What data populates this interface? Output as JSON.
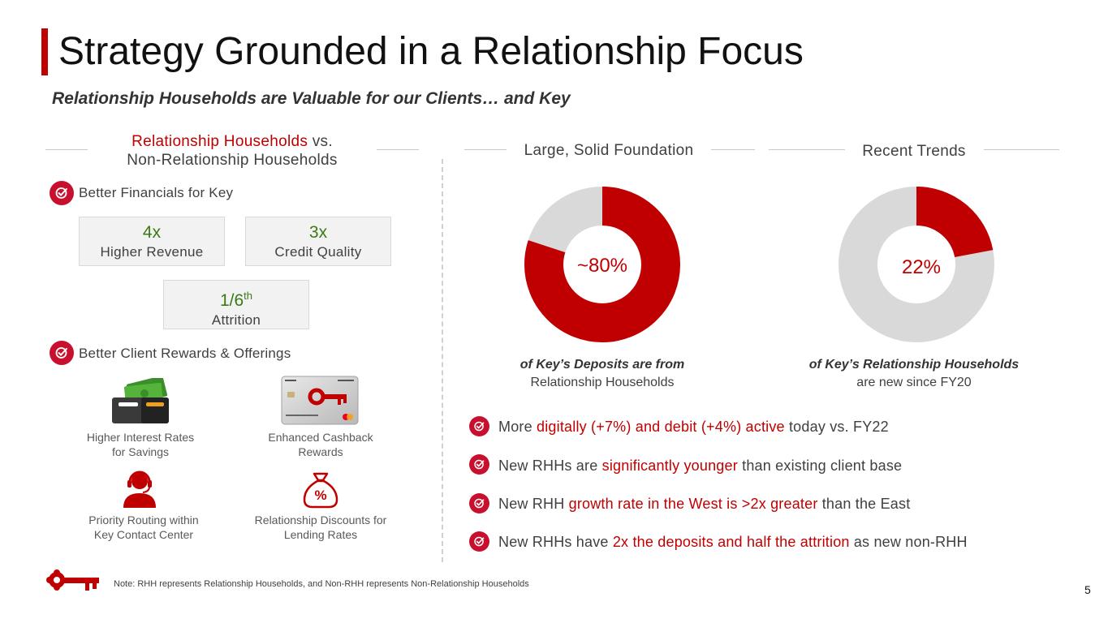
{
  "header": {
    "title": "Strategy Grounded in a Relationship Focus",
    "subtitle": "Relationship Households are Valuable for our Clients… and Key"
  },
  "left_section": {
    "heading_red": "Relationship Households",
    "heading_vs": " vs.",
    "heading_line2": "Non-Relationship Households",
    "financials": {
      "label": "Better Financials for Key",
      "stats": [
        {
          "value": "4x",
          "label": "Higher Revenue"
        },
        {
          "value": "3x",
          "label": "Credit Quality"
        },
        {
          "value": "1/6",
          "sup": "th",
          "label": "Attrition"
        }
      ]
    },
    "rewards": {
      "label": "Better Client Rewards & Offerings",
      "items": [
        {
          "icon": "wallet-icon",
          "line1": "Higher Interest Rates",
          "line2": "for Savings"
        },
        {
          "icon": "credit-card-icon",
          "line1": "Enhanced Cashback",
          "line2": "Rewards"
        },
        {
          "icon": "headset-agent-icon",
          "line1": "Priority Routing within",
          "line2": "Key Contact Center"
        },
        {
          "icon": "money-bag-icon",
          "line1": "Relationship Discounts for",
          "line2": "Lending Rates"
        }
      ]
    }
  },
  "foundation": {
    "heading": "Large, Solid Foundation",
    "value_label": "~80%",
    "value": 80,
    "caption_bold": "of Key’s Deposits are from",
    "caption_line2": "Relationship Households"
  },
  "trends": {
    "heading": "Recent Trends",
    "value_label": "22%",
    "value": 22,
    "caption_bold": "of Key’s Relationship Households",
    "caption_line2": "are new since FY20"
  },
  "bullets": [
    {
      "pre": "More ",
      "highlight": "digitally (+7%) and debit (+4%) active",
      "post": " today vs. FY22"
    },
    {
      "pre": "New RHHs are ",
      "highlight": "significantly younger",
      "post": " than existing client base"
    },
    {
      "pre": "New RHH ",
      "highlight": "growth rate in the West is >2x greater",
      "post": " than the East"
    },
    {
      "pre": "New RHHs have ",
      "highlight": "2x the deposits and half the attrition",
      "post": " as new non-RHH"
    }
  ],
  "footer": {
    "note": "Note: RHH represents Relationship Households, and Non-RHH represents Non-Relationship Households",
    "page_number": "5"
  },
  "colors": {
    "brand_red": "#c00000",
    "stat_green": "#3a7a14",
    "donut_gray": "#d9d9d9"
  }
}
